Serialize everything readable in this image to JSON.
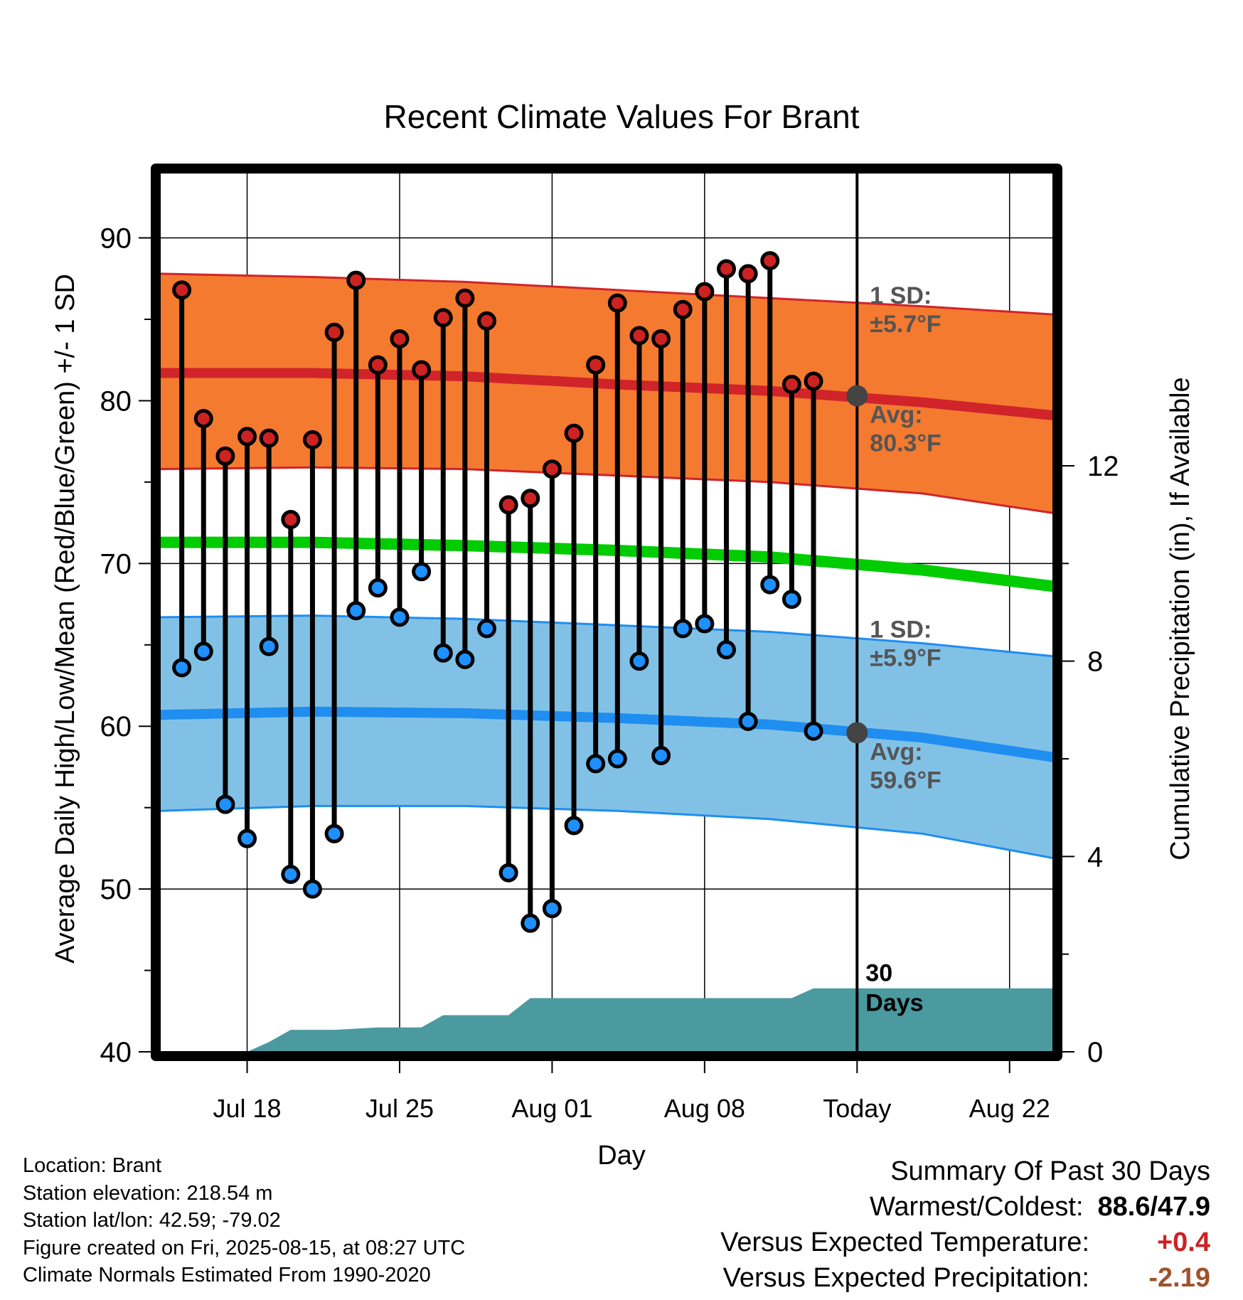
{
  "chart_data": {
    "type": "line",
    "title": "Recent Climate Values For Brant",
    "xlabel": "Day",
    "ylabel": "Average Daily High/Low/Mean (Red/Blue/Green) +/- 1 SD",
    "y2label": "Cumulative Precipitation (in), If Available",
    "ylim": [
      40,
      94
    ],
    "y2lim": [
      0,
      18
    ],
    "yticks": [
      "40",
      "50",
      "60",
      "70",
      "80",
      "90"
    ],
    "y2ticks": [
      "0",
      "4",
      "8",
      "12"
    ],
    "x_ticks": [
      {
        "label": "Jul 18",
        "date": "2025-07-18"
      },
      {
        "label": "Jul 25",
        "date": "2025-07-25"
      },
      {
        "label": "Aug 01",
        "date": "2025-08-01"
      },
      {
        "label": "Aug 08",
        "date": "2025-08-08"
      },
      {
        "label": "Today",
        "date": "2025-08-15"
      },
      {
        "label": "Aug 22",
        "date": "2025-08-22"
      }
    ],
    "xlim": [
      "2025-07-14",
      "2025-08-24"
    ],
    "today": "2025-08-15",
    "grid": true,
    "high_normal": {
      "name": "Avg:",
      "value_label": "80.3°F",
      "sd_label": "1 SD:",
      "sd_value_label": "±5.7°F",
      "dates": [
        "2025-07-14",
        "2025-07-21",
        "2025-07-28",
        "2025-08-04",
        "2025-08-11",
        "2025-08-18",
        "2025-08-24"
      ],
      "mean": [
        81.7,
        81.7,
        81.5,
        81.0,
        80.6,
        79.9,
        79.1
      ],
      "upper": [
        87.8,
        87.6,
        87.3,
        86.8,
        86.3,
        85.8,
        85.3
      ],
      "lower": [
        75.8,
        75.9,
        75.8,
        75.4,
        75.0,
        74.3,
        73.1
      ]
    },
    "low_normal": {
      "name": "Avg:",
      "value_label": "59.6°F",
      "sd_label": "1 SD:",
      "sd_value_label": "±5.9°F",
      "dates": [
        "2025-07-14",
        "2025-07-21",
        "2025-07-28",
        "2025-08-04",
        "2025-08-11",
        "2025-08-18",
        "2025-08-24"
      ],
      "mean": [
        60.7,
        60.9,
        60.8,
        60.5,
        60.1,
        59.3,
        58.1
      ],
      "upper": [
        66.7,
        66.8,
        66.6,
        66.2,
        65.8,
        65.1,
        64.3
      ],
      "lower": [
        54.8,
        55.1,
        55.1,
        54.8,
        54.3,
        53.4,
        51.9
      ]
    },
    "mean_normal": {
      "dates": [
        "2025-07-14",
        "2025-07-21",
        "2025-07-28",
        "2025-08-04",
        "2025-08-11",
        "2025-08-18",
        "2025-08-24"
      ],
      "values": [
        71.3,
        71.3,
        71.1,
        70.8,
        70.4,
        69.6,
        68.6
      ]
    },
    "daily": {
      "dates": [
        "2025-07-15",
        "2025-07-16",
        "2025-07-17",
        "2025-07-18",
        "2025-07-19",
        "2025-07-20",
        "2025-07-21",
        "2025-07-22",
        "2025-07-23",
        "2025-07-24",
        "2025-07-25",
        "2025-07-26",
        "2025-07-27",
        "2025-07-28",
        "2025-07-29",
        "2025-07-30",
        "2025-07-31",
        "2025-08-01",
        "2025-08-02",
        "2025-08-03",
        "2025-08-04",
        "2025-08-05",
        "2025-08-06",
        "2025-08-07",
        "2025-08-08",
        "2025-08-09",
        "2025-08-10",
        "2025-08-11",
        "2025-08-12",
        "2025-08-13",
        "2025-08-14"
      ],
      "high": [
        86.8,
        78.9,
        76.6,
        77.8,
        77.7,
        72.7,
        77.6,
        84.2,
        87.4,
        82.2,
        83.8,
        81.9,
        85.1,
        86.3,
        84.9,
        73.6,
        74.0,
        75.8,
        78.0,
        82.2,
        86.0,
        84.0,
        83.8,
        85.6,
        86.7,
        88.1,
        87.8,
        88.6,
        81.0,
        81.2,
        null
      ],
      "low": [
        63.6,
        64.6,
        55.2,
        53.1,
        64.9,
        50.9,
        50.0,
        53.4,
        67.1,
        68.5,
        66.7,
        69.5,
        64.5,
        64.1,
        66.0,
        51.0,
        47.9,
        48.8,
        53.9,
        57.7,
        58.0,
        64.0,
        58.2,
        66.0,
        66.3,
        64.7,
        60.3,
        68.7,
        67.8,
        59.7,
        null
      ]
    },
    "precipitation": {
      "name": "30 Days",
      "dates": [
        "2025-07-18",
        "2025-07-19",
        "2025-07-20",
        "2025-07-22",
        "2025-07-24",
        "2025-07-26",
        "2025-07-27",
        "2025-07-30",
        "2025-07-31",
        "2025-08-12",
        "2025-08-13",
        "2025-08-24"
      ],
      "cumulative": [
        0.0,
        0.2,
        0.45,
        0.45,
        0.5,
        0.5,
        0.75,
        0.75,
        1.1,
        1.1,
        1.3,
        1.3
      ]
    }
  },
  "footer": {
    "location": "Location: Brant",
    "elevation": "Station elevation: 218.54 m",
    "latlon": "Station lat/lon: 42.59; -79.02",
    "created": "Figure created on Fri, 2025-08-15, at 08:27 UTC",
    "normals": "Climate Normals Estimated From 1990-2020"
  },
  "summary": {
    "title": "Summary Of Past 30 Days",
    "warmest_label": "Warmest/Coldest:",
    "warmest_value": "88.6/47.9",
    "temp_label": "Versus Expected Temperature:",
    "temp_value": "+0.4",
    "temp_color": "#cc2222",
    "precip_label": "Versus Expected Precipitation:",
    "precip_value": "-2.19",
    "precip_color": "#a0522d"
  },
  "colors": {
    "high_band": "#f47a30",
    "high_line": "#d0242a",
    "low_band": "#82c1e6",
    "low_line": "#1f8ef0",
    "mean_line": "#00cc00",
    "precip": "#4a9aa0",
    "high_dot": "#cc2222",
    "low_dot": "#1e90ff",
    "today_dot": "#444444",
    "annotation": "#555555"
  }
}
